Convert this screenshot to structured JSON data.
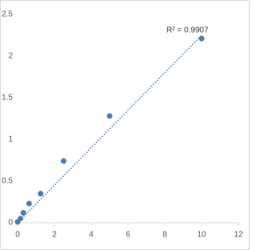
{
  "chart_data": {
    "type": "scatter",
    "annotation": "R² = 0.9907",
    "series": [
      {
        "color": "#4a7ebb",
        "x": [
          0,
          0.156,
          0.3125,
          0.625,
          1.25,
          2.5,
          5,
          10
        ],
        "values": [
          0.01,
          0.05,
          0.12,
          0.23,
          0.35,
          0.74,
          1.28,
          2.21
        ]
      }
    ],
    "trendline": {
      "color": "#4a7ebb",
      "x": [
        0,
        10
      ],
      "values": [
        0,
        2.25
      ]
    },
    "xlim": [
      0,
      12
    ],
    "xticks": [
      0,
      2,
      4,
      6,
      8,
      10,
      12
    ],
    "ylim": [
      0,
      2.5
    ],
    "yticks": [
      0,
      0.5,
      1,
      1.5,
      2,
      2.5
    ],
    "grid": false
  }
}
